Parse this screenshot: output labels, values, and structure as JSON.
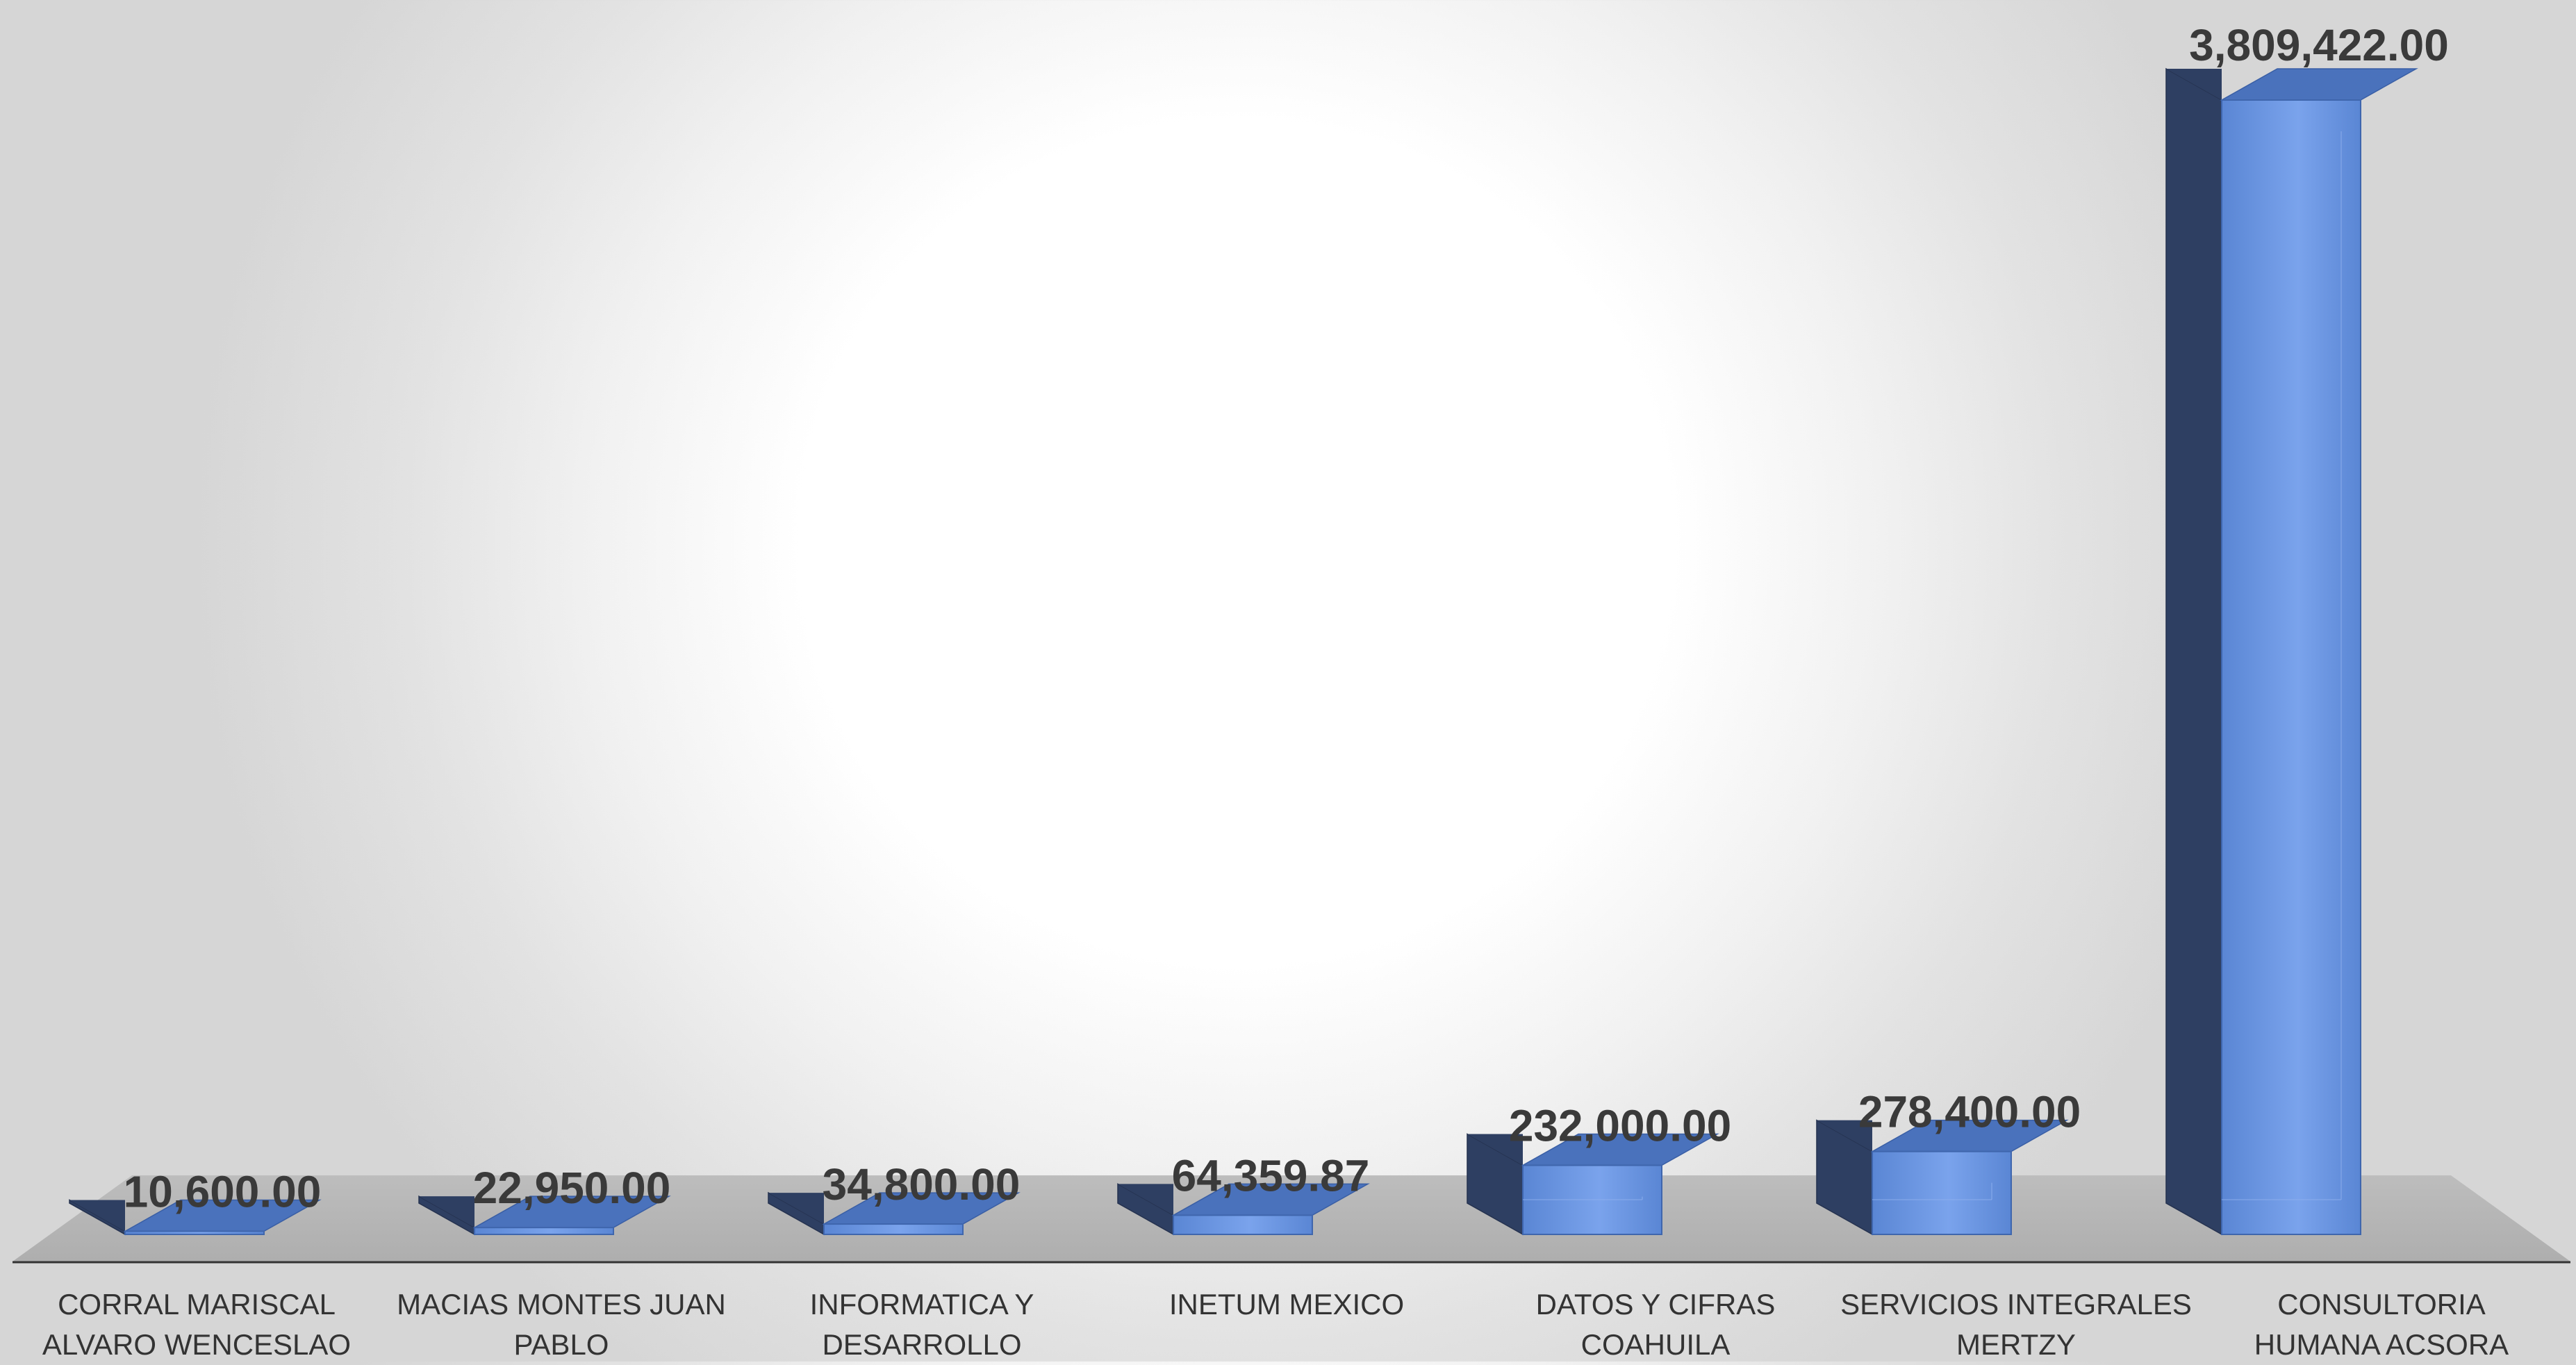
{
  "chart_data": {
    "type": "bar",
    "categories": [
      [
        "CORRAL MARISCAL",
        "ALVARO WENCESLAO"
      ],
      [
        "MACIAS MONTES JUAN",
        "PABLO"
      ],
      [
        "INFORMATICA Y",
        "DESARROLLO"
      ],
      [
        "INETUM MEXICO"
      ],
      [
        "DATOS Y CIFRAS",
        "COAHUILA"
      ],
      [
        "SERVICIOS INTEGRALES",
        "MERTZY"
      ],
      [
        "CONSULTORIA",
        "HUMANA ACSORA"
      ]
    ],
    "values": [
      10600.0,
      22950.0,
      34800.0,
      64359.87,
      232000.0,
      278400.0,
      3809422.0
    ],
    "data_labels": [
      "10,600.00",
      "22,950.00",
      "34,800.00",
      "64,359.87",
      "232,000.00",
      "278,400.00",
      "3,809,422.00"
    ],
    "style": "3d-column",
    "colors": {
      "bar_front": "#4f7fd0",
      "bar_top": "#4a72bc",
      "bar_side": "#2e3f62",
      "floor": "#b5b5b5",
      "axis_line": "#333333",
      "label_text": "#3a3a3a",
      "category_text": "#333333"
    },
    "title": "",
    "xlabel": "",
    "ylabel": "",
    "ylim": [
      0,
      3809422.0
    ],
    "grid": false,
    "legend": "none"
  }
}
